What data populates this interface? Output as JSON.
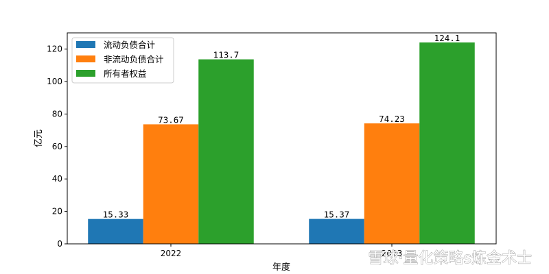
{
  "chart_data": {
    "type": "bar",
    "categories": [
      "2022",
      "2023"
    ],
    "series": [
      {
        "name": "流动负债合计",
        "values": [
          15.33,
          15.37
        ],
        "labels": [
          "15.33",
          "15.37"
        ],
        "color": "#1f77b4"
      },
      {
        "name": "非流动负债合计",
        "values": [
          73.67,
          74.23
        ],
        "labels": [
          "73.67",
          "74.23"
        ],
        "color": "#ff7f0e"
      },
      {
        "name": "所有者权益",
        "values": [
          113.7,
          124.1
        ],
        "labels": [
          "113.7",
          "124.1"
        ],
        "color": "#2ca02c"
      }
    ],
    "xlabel": "年度",
    "ylabel": "亿元",
    "ylim": [
      0,
      130
    ],
    "yticks": [
      0,
      20,
      40,
      60,
      80,
      100,
      120
    ],
    "grid": false,
    "legend_position": "top-left"
  },
  "watermark": "雪球·量化策略s炼金术士"
}
